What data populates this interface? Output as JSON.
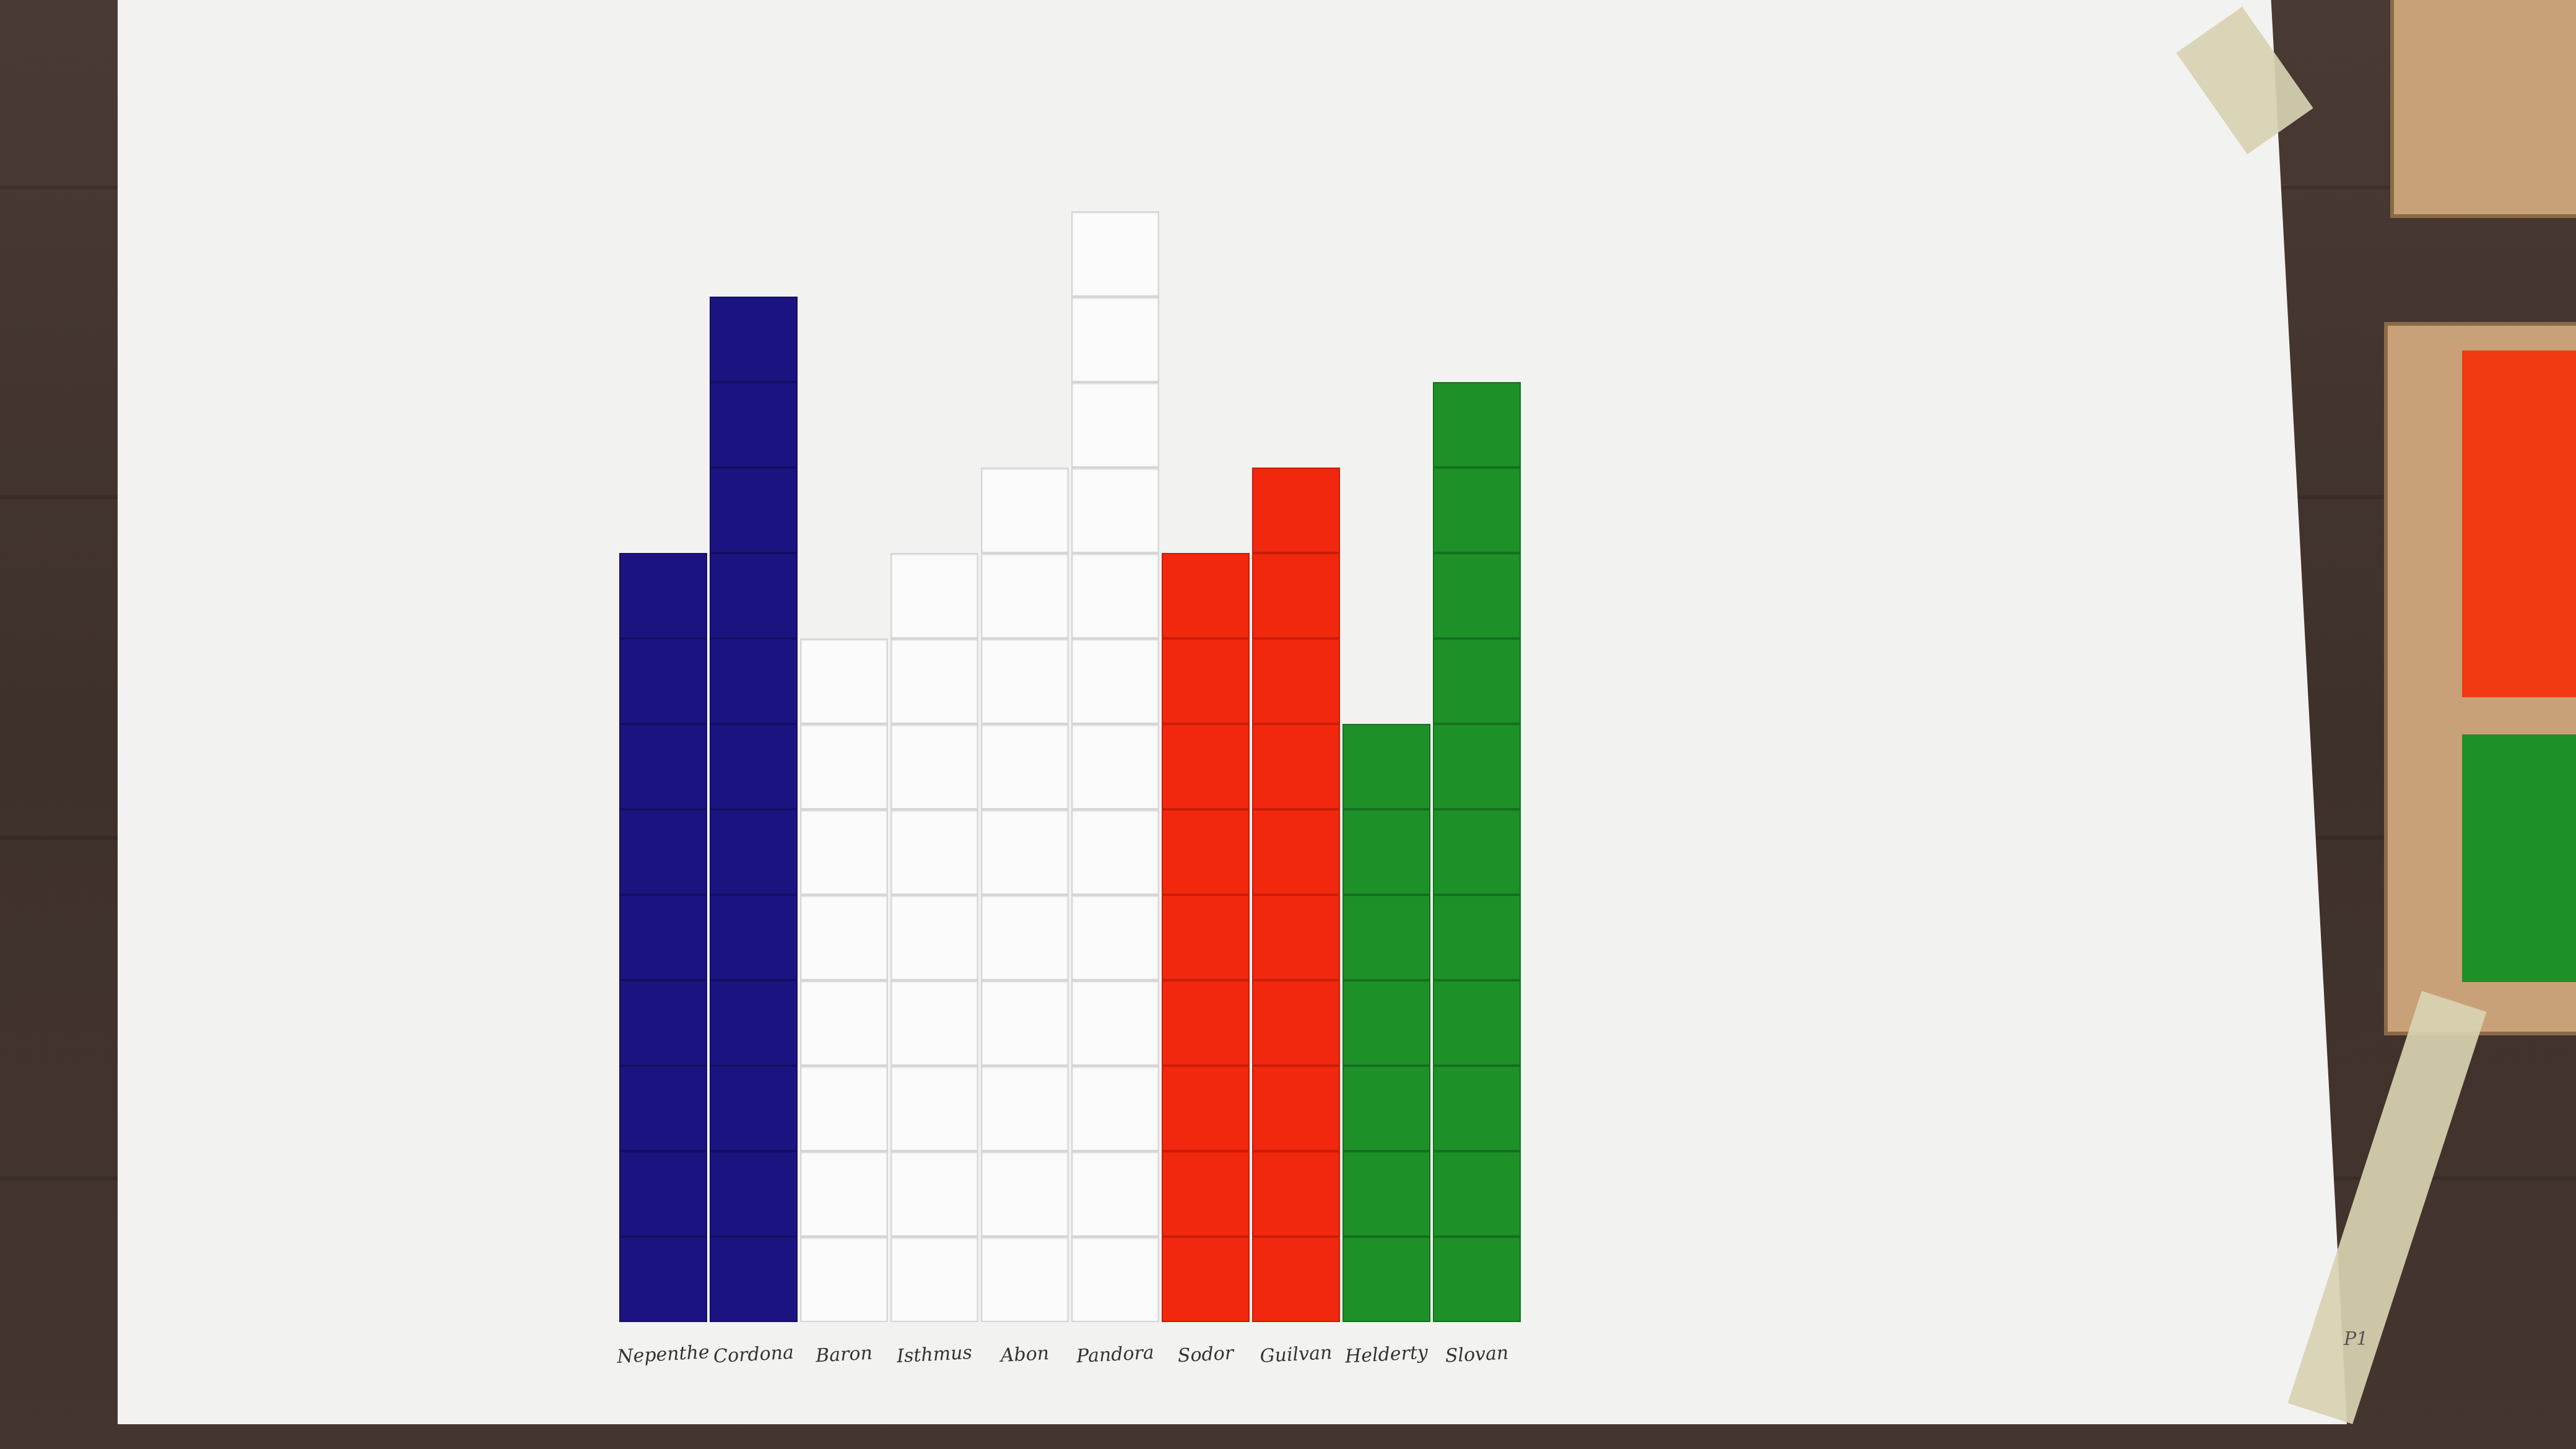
{
  "photo": {
    "subject": "paper-graph-of-colored-tiles",
    "colors": {
      "blue": "#1b1480",
      "white": "#fbfbfb",
      "red": "#f1270e",
      "green": "#1d9028",
      "paper": "#f2f2f0",
      "table": "#45352f"
    }
  },
  "chart_data": {
    "type": "bar",
    "categories": [
      "Nepenthe",
      "Cordona",
      "Baron",
      "Isthmus",
      "Abon",
      "Pandora",
      "Sodor",
      "Guilvan",
      "Helderty",
      "Slovan"
    ],
    "values": [
      9,
      12,
      8,
      9,
      10,
      13,
      9,
      10,
      7,
      11
    ],
    "series_colors": [
      "blue",
      "blue",
      "white",
      "white",
      "white",
      "white",
      "red",
      "red",
      "green",
      "green"
    ]
  },
  "corner_mark": "P1"
}
